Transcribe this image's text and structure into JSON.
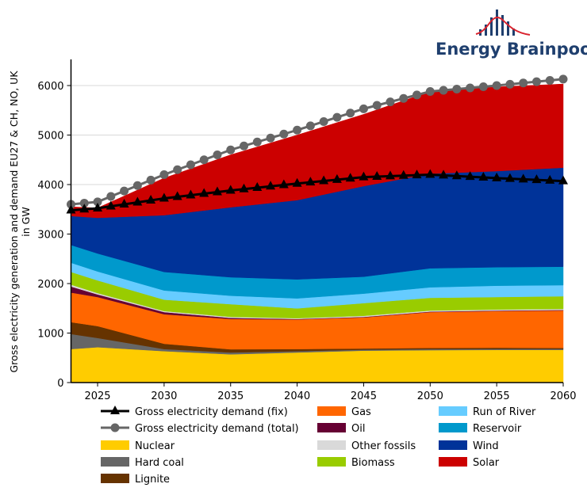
{
  "logo": {
    "text": "Energy Brainpool",
    "colors": {
      "bars": "#1f3f6e",
      "curve": "#d9232e"
    }
  },
  "chart_data": {
    "type": "area",
    "stacked": true,
    "ylabel": [
      "Gross electricity generation and demand EU27 & CH, NO, UK",
      "in GW"
    ],
    "xlabel": "",
    "xlim": [
      2023,
      2060
    ],
    "ylim": [
      0,
      6300
    ],
    "x_ticks": [
      2025,
      2030,
      2035,
      2040,
      2045,
      2050,
      2055,
      2060
    ],
    "y_ticks": [
      0,
      1000,
      2000,
      3000,
      4000,
      5000,
      6000
    ],
    "grid": "horizontal, light",
    "legend_position": "bottom",
    "x": [
      2023,
      2025,
      2030,
      2035,
      2040,
      2045,
      2050,
      2055,
      2060
    ],
    "series": [
      {
        "name": "Nuclear",
        "color": "#FFCC00",
        "values": [
          677,
          715,
          635,
          571,
          608,
          645,
          655,
          660,
          660
        ]
      },
      {
        "name": "Hard coal",
        "color": "#666666",
        "values": [
          304,
          186,
          42,
          37,
          27,
          20,
          20,
          20,
          20
        ]
      },
      {
        "name": "Lignite",
        "color": "#663300",
        "values": [
          240,
          240,
          107,
          64,
          42,
          23,
          25,
          25,
          20
        ]
      },
      {
        "name": "Gas",
        "color": "#FF6600",
        "values": [
          598,
          587,
          597,
          613,
          598,
          629,
          724,
          740,
          756
        ]
      },
      {
        "name": "Oil",
        "color": "#660033",
        "values": [
          122,
          53,
          43,
          22,
          10,
          10,
          10,
          10,
          10
        ]
      },
      {
        "name": "Other fossils",
        "color": "#D9D9D9",
        "values": [
          38,
          27,
          21,
          21,
          16,
          22,
          22,
          22,
          22
        ]
      },
      {
        "name": "Biomass",
        "color": "#99CC00",
        "values": [
          256,
          256,
          230,
          256,
          198,
          256,
          256,
          251,
          256
        ]
      },
      {
        "name": "Run of River",
        "color": "#66CCFF",
        "values": [
          186,
          181,
          186,
          171,
          202,
          192,
          213,
          229,
          224
        ]
      },
      {
        "name": "Reservoir",
        "color": "#0099CC",
        "values": [
          358,
          363,
          374,
          373,
          384,
          342,
          384,
          374,
          373
        ]
      },
      {
        "name": "Wind",
        "color": "#003399",
        "values": [
          586,
          720,
          1146,
          1413,
          1600,
          1830,
          1910,
          1941,
          2000
        ]
      },
      {
        "name": "Solar",
        "color": "#CC0000",
        "values": [
          185,
          200,
          750,
          1060,
          1315,
          1450,
          1660,
          1700,
          1690
        ]
      }
    ],
    "lines": [
      {
        "name": "Gross electricity demand (fix)",
        "color": "#000000",
        "marker": "triangle",
        "values": [
          3480,
          3520,
          3720,
          3880,
          4020,
          4150,
          4200,
          4130,
          4070
        ]
      },
      {
        "name": "Gross electricity demand (total)",
        "color": "#666666",
        "marker": "circle",
        "values": [
          3600,
          3650,
          4200,
          4700,
          5100,
          5530,
          5880,
          6000,
          6130
        ]
      }
    ],
    "legend": {
      "columns": [
        [
          "Gross electricity demand (fix)",
          "Gross electricity demand (total)",
          "Nuclear",
          "Hard coal",
          "Lignite"
        ],
        [
          "Gas",
          "Oil",
          "Other fossils",
          "Biomass"
        ],
        [
          "Run of River",
          "Reservoir",
          "Wind",
          "Solar"
        ]
      ]
    }
  }
}
